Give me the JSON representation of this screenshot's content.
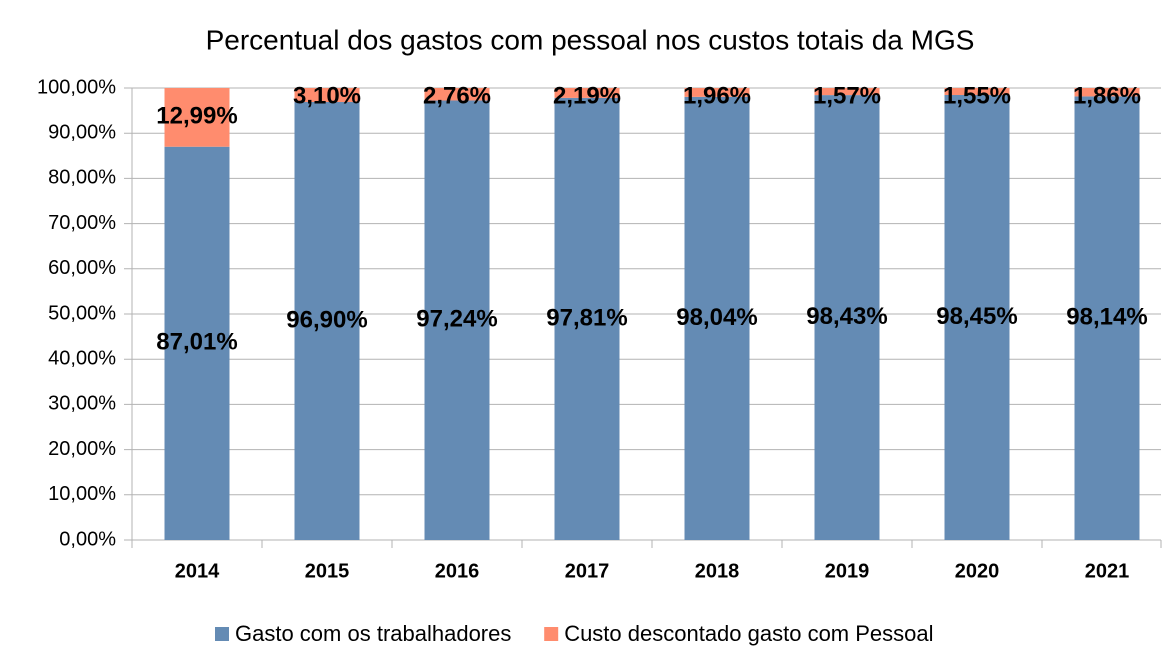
{
  "chart_data": {
    "type": "stacked_bar",
    "title": "Percentual dos gastos com pessoal nos custos totais da MGS",
    "categories": [
      "2014",
      "2015",
      "2016",
      "2017",
      "2018",
      "2019",
      "2020",
      "2021"
    ],
    "series": [
      {
        "name": "Gasto com os trabalhadores",
        "color": "#648bb4",
        "values": [
          87.01,
          96.9,
          97.24,
          97.81,
          98.04,
          98.43,
          98.45,
          98.14
        ],
        "value_labels": [
          "87,01%",
          "96,90%",
          "97,24%",
          "97,81%",
          "98,04%",
          "98,43%",
          "98,45%",
          "98,14%"
        ]
      },
      {
        "name": "Custo descontado gasto com Pessoal",
        "color": "#ff8c6e",
        "values": [
          12.99,
          3.1,
          2.76,
          2.19,
          1.96,
          1.57,
          1.55,
          1.86
        ],
        "value_labels": [
          "12,99%",
          "3,10%",
          "2,76%",
          "2,19%",
          "1,96%",
          "1,57%",
          "1,55%",
          "1,86%"
        ]
      }
    ],
    "ylim": [
      0,
      100
    ],
    "yticks": [
      {
        "value": 0,
        "label": "0,00%"
      },
      {
        "value": 10,
        "label": "10,00%"
      },
      {
        "value": 20,
        "label": "20,00%"
      },
      {
        "value": 30,
        "label": "30,00%"
      },
      {
        "value": 40,
        "label": "40,00%"
      },
      {
        "value": 50,
        "label": "50,00%"
      },
      {
        "value": 60,
        "label": "60,00%"
      },
      {
        "value": 70,
        "label": "70,00%"
      },
      {
        "value": 80,
        "label": "80,00%"
      },
      {
        "value": 90,
        "label": "90,00%"
      },
      {
        "value": 100,
        "label": "100,00%"
      }
    ],
    "grid": true,
    "legend": "bottom"
  }
}
